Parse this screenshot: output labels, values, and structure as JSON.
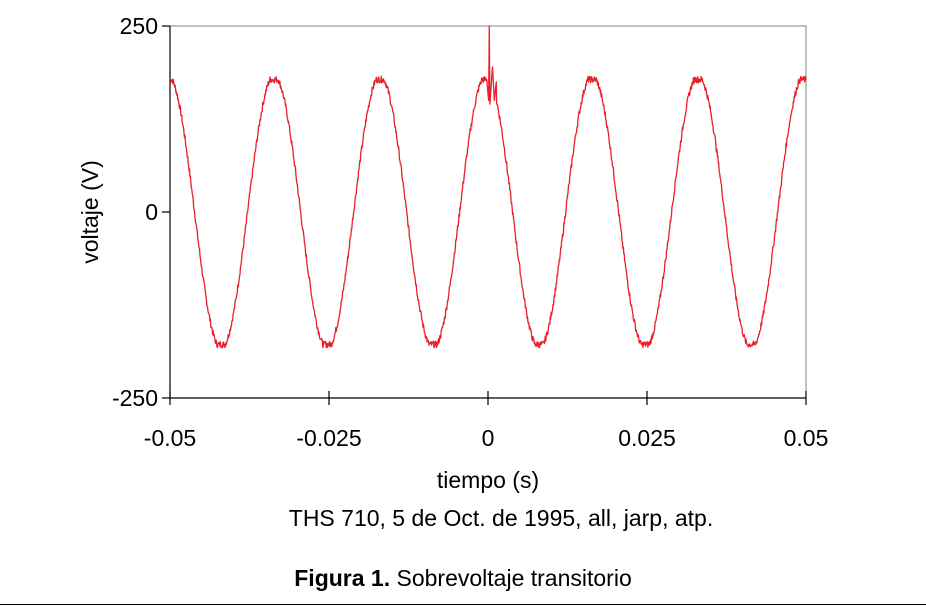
{
  "chart_data": {
    "type": "line",
    "xlabel": "tiempo (s)",
    "ylabel": "voltaje (V)",
    "xlim": [
      -0.05,
      0.05
    ],
    "ylim": [
      -250,
      250
    ],
    "x_ticks": [
      -0.05,
      -0.025,
      0,
      0.025,
      0.05
    ],
    "x_tick_labels": [
      "-0.05",
      "-0.025",
      "0",
      "0.025",
      "0.05"
    ],
    "y_ticks": [
      -250,
      0,
      250
    ],
    "y_tick_labels": [
      "-250",
      "0",
      "250"
    ],
    "grid": false,
    "series": [
      {
        "color": "#e8202a",
        "waveform": "sine",
        "frequency_hz": 60,
        "amplitude_v": 178,
        "phase_peak_time_s": -0.0003,
        "transient_spike": {
          "x": 0.0002,
          "y": 250
        },
        "x": [
          -0.05,
          -0.0458,
          -0.0417,
          -0.0375,
          -0.0333,
          -0.0292,
          -0.025,
          -0.0208,
          -0.0167,
          -0.0125,
          -0.0083,
          -0.0042,
          0,
          0.0042,
          0.0083,
          0.0125,
          0.0167,
          0.0208,
          0.025,
          0.0292,
          0.0333,
          0.0375,
          0.0417,
          0.0458,
          0.05
        ],
        "y": [
          175,
          0,
          -180,
          0,
          175,
          0,
          -180,
          0,
          175,
          0,
          -180,
          0,
          250,
          0,
          -180,
          0,
          175,
          0,
          -180,
          0,
          175,
          0,
          -180,
          0,
          175
        ]
      }
    ]
  },
  "source_note": "THS 710, 5 de Oct. de 1995, all, jarp, atp.",
  "caption": {
    "label": "Figura 1.",
    "text": "Sobrevoltaje transitorio"
  }
}
